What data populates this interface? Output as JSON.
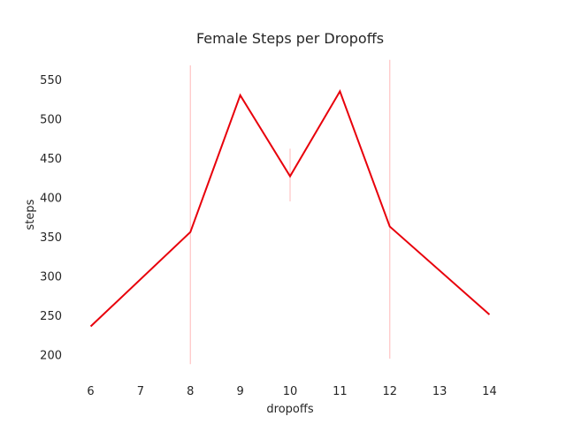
{
  "chart_data": {
    "type": "line",
    "title": "Female Steps per Dropoffs",
    "xlabel": "dropoffs",
    "ylabel": "steps",
    "x": [
      6,
      8,
      9,
      10,
      11,
      12,
      14
    ],
    "series": [
      {
        "values": [
          236,
          356,
          530,
          427,
          535,
          363,
          251
        ],
        "color": "#e8000b"
      }
    ],
    "error_bars": [
      {
        "x": 8,
        "low": 188,
        "high": 568
      },
      {
        "x": 10,
        "low": 395,
        "high": 462
      },
      {
        "x": 12,
        "low": 195,
        "high": 575
      }
    ],
    "error_bar_color": "#ffc8c8",
    "xticks": [
      6,
      7,
      8,
      9,
      10,
      11,
      12,
      13,
      14
    ],
    "yticks": [
      200,
      250,
      300,
      350,
      400,
      450,
      500,
      550
    ],
    "xlim": [
      5.6,
      14.4
    ],
    "ylim": [
      177,
      586
    ],
    "grid": false
  }
}
